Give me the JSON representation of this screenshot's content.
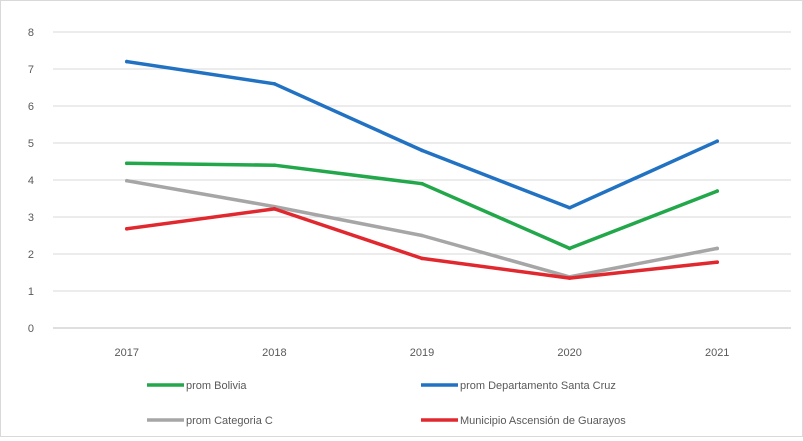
{
  "chart_data": {
    "type": "line",
    "title": "",
    "xlabel": "",
    "ylabel": "",
    "categories": [
      "2017",
      "2018",
      "2019",
      "2020",
      "2021"
    ],
    "ylim": [
      0,
      8
    ],
    "yticks": [
      0,
      1,
      2,
      3,
      4,
      5,
      6,
      7,
      8
    ],
    "grid": true,
    "legend_position": "bottom",
    "series": [
      {
        "name": "prom Bolivia",
        "color": "#22a74a",
        "values": [
          4.45,
          4.4,
          3.9,
          2.15,
          3.7
        ]
      },
      {
        "name": "prom Departamento Santa Cruz",
        "color": "#2272c3",
        "values": [
          7.2,
          6.6,
          4.8,
          3.25,
          5.05
        ]
      },
      {
        "name": "prom Categoria C",
        "color": "#a6a6a6",
        "values": [
          3.98,
          3.28,
          2.5,
          1.38,
          2.15
        ]
      },
      {
        "name": "Municipio Ascensión de Guarayos",
        "color": "#e0282e",
        "values": [
          2.68,
          3.22,
          1.88,
          1.35,
          1.78
        ]
      }
    ]
  }
}
